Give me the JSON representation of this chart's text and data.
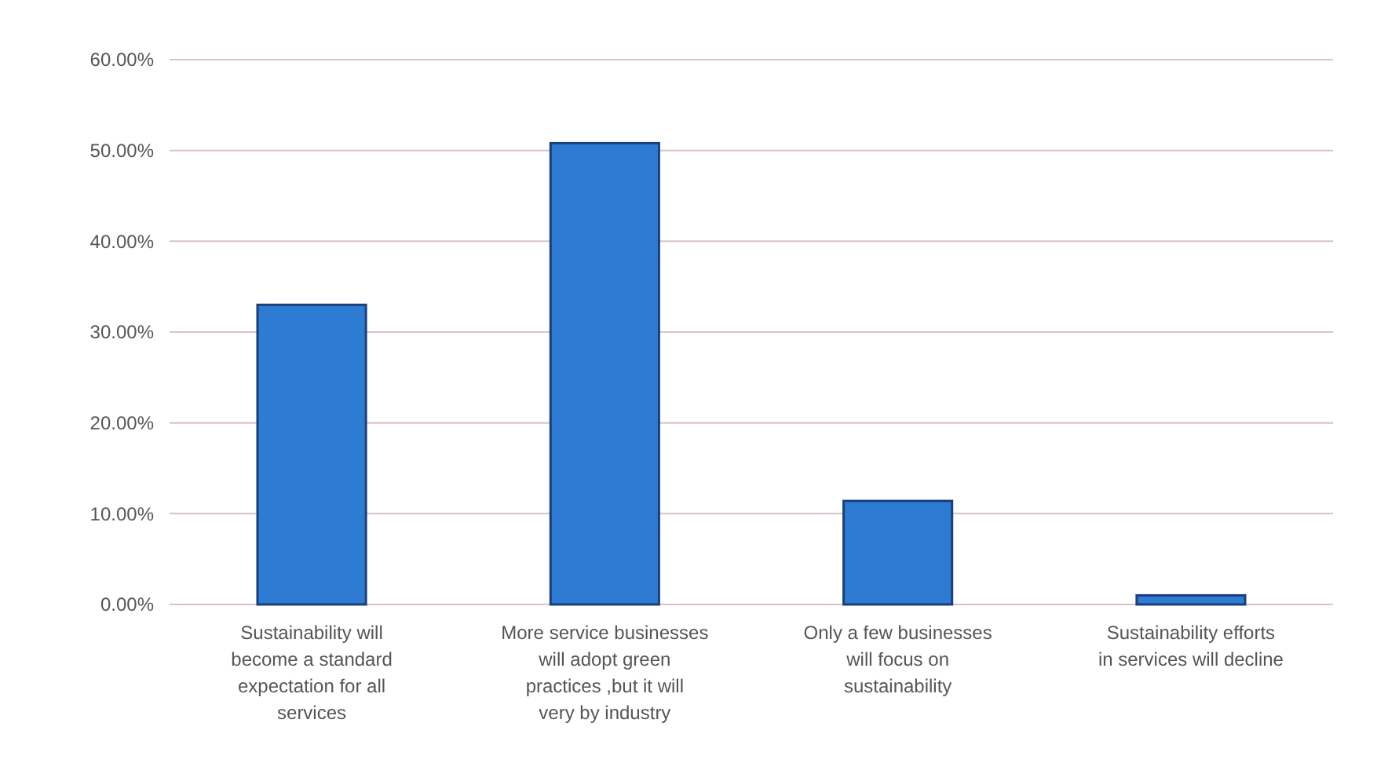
{
  "chart_data": {
    "type": "bar",
    "categories": [
      "Sustainability will become a standard expectation for all services",
      "More service businesses will adopt green practices ,but it will very by industry",
      "Only a few businesses will focus on sustainability",
      "Sustainability efforts in services will decline"
    ],
    "values": [
      33,
      50.8,
      11.4,
      1
    ],
    "color": "#2e7bd4",
    "ylim": [
      0,
      60
    ],
    "yticks": [
      {
        "value": 0,
        "label": "0.00%"
      },
      {
        "value": 10,
        "label": "10.00%"
      },
      {
        "value": 20,
        "label": "20.00%"
      },
      {
        "value": 30,
        "label": "30.00%"
      },
      {
        "value": 40,
        "label": "40.00%"
      },
      {
        "value": 50,
        "label": "50.00%"
      },
      {
        "value": 60,
        "label": "60.00%"
      }
    ],
    "grid": "y"
  }
}
